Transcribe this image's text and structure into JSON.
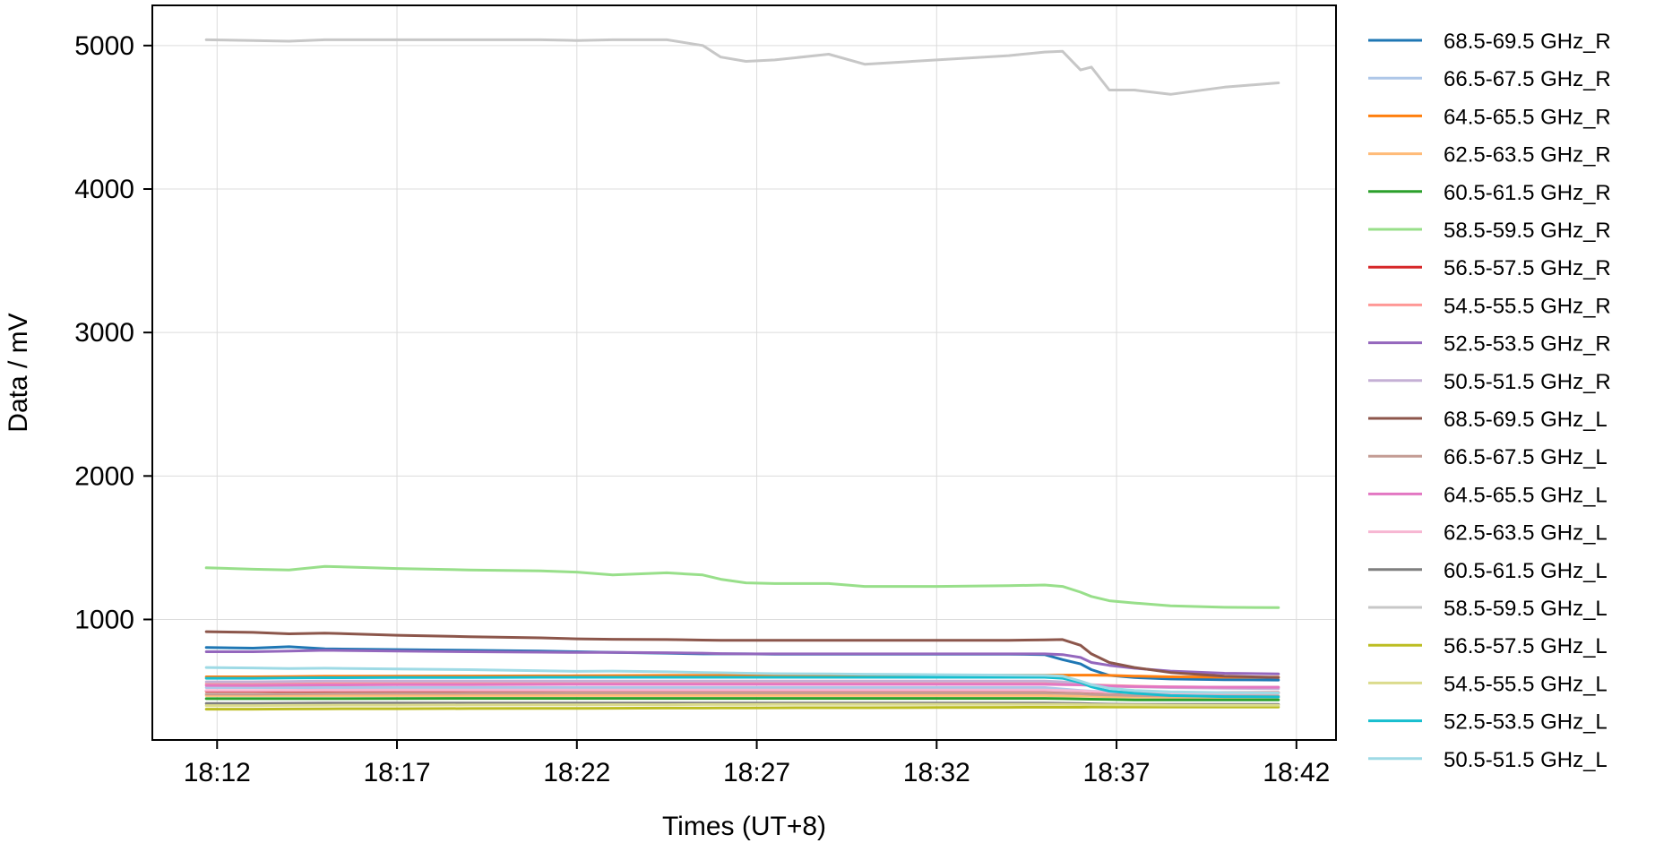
{
  "chart_data": {
    "type": "line",
    "title": "",
    "xlabel": "Times (UT+8)",
    "ylabel": "Data / mV",
    "x_tick_labels": [
      "18:12",
      "18:17",
      "18:22",
      "18:27",
      "18:32",
      "18:37",
      "18:42"
    ],
    "x_tick_minutes": [
      0,
      5,
      10,
      15,
      20,
      25,
      30
    ],
    "y_ticks": [
      1000,
      2000,
      3000,
      4000,
      5000
    ],
    "xlim_minutes": [
      -1.8,
      31.1
    ],
    "ylim": [
      160,
      5280
    ],
    "grid": true,
    "legend_location": "outside-right",
    "x": [
      -0.3,
      1.0,
      2.0,
      3.0,
      5.0,
      7.0,
      9.0,
      10.0,
      11.0,
      12.5,
      13.5,
      14.0,
      14.7,
      15.5,
      17.0,
      18.0,
      20.0,
      22.0,
      23.0,
      23.5,
      24.0,
      24.3,
      24.8,
      25.5,
      26.5,
      28.0,
      29.5
    ],
    "series": [
      {
        "name": "68.5-69.5 GHz_R",
        "color": "#1f77b4",
        "values": [
          805,
          800,
          810,
          795,
          790,
          785,
          780,
          775,
          770,
          765,
          760,
          760,
          760,
          758,
          758,
          758,
          758,
          758,
          755,
          720,
          690,
          650,
          610,
          595,
          585,
          580,
          578
        ]
      },
      {
        "name": "66.5-67.5 GHz_R",
        "color": "#aec7e8",
        "values": [
          525,
          525,
          525,
          525,
          525,
          525,
          525,
          525,
          525,
          525,
          525,
          525,
          525,
          525,
          525,
          525,
          525,
          525,
          525,
          515,
          505,
          500,
          495,
          490,
          485,
          485,
          485
        ]
      },
      {
        "name": "64.5-65.5 GHz_R",
        "color": "#ff7f0e",
        "values": [
          600,
          600,
          602,
          604,
          605,
          606,
          607,
          608,
          609,
          610,
          610,
          610,
          611,
          612,
          612,
          612,
          612,
          612,
          612,
          612,
          612,
          612,
          610,
          605,
          600,
          598,
          598
        ]
      },
      {
        "name": "62.5-63.5 GHz_R",
        "color": "#ffbb78",
        "values": [
          470,
          470,
          470,
          470,
          470,
          470,
          470,
          470,
          470,
          470,
          470,
          470,
          470,
          470,
          470,
          470,
          470,
          470,
          470,
          468,
          466,
          464,
          462,
          460,
          458,
          458,
          458
        ]
      },
      {
        "name": "60.5-61.5 GHz_R",
        "color": "#2ca02c",
        "values": [
          448,
          448,
          448,
          448,
          449,
          450,
          450,
          450,
          450,
          450,
          450,
          450,
          450,
          450,
          450,
          450,
          450,
          450,
          450,
          448,
          446,
          444,
          442,
          440,
          440,
          440,
          440
        ]
      },
      {
        "name": "58.5-59.5 GHz_R",
        "color": "#98df8a",
        "values": [
          1360,
          1350,
          1345,
          1370,
          1355,
          1345,
          1338,
          1330,
          1310,
          1325,
          1310,
          1280,
          1255,
          1250,
          1250,
          1230,
          1230,
          1235,
          1240,
          1230,
          1190,
          1160,
          1130,
          1115,
          1095,
          1085,
          1082
        ]
      },
      {
        "name": "56.5-57.5 GHz_R",
        "color": "#d62728",
        "values": [
          500,
          500,
          500,
          500,
          500,
          500,
          500,
          500,
          500,
          500,
          500,
          500,
          500,
          500,
          500,
          500,
          500,
          500,
          500,
          498,
          496,
          494,
          492,
          490,
          490,
          490,
          490
        ]
      },
      {
        "name": "54.5-55.5 GHz_R",
        "color": "#ff9896",
        "values": [
          550,
          550,
          552,
          554,
          555,
          556,
          557,
          558,
          558,
          558,
          558,
          558,
          558,
          558,
          558,
          558,
          558,
          558,
          558,
          555,
          550,
          545,
          540,
          535,
          530,
          528,
          528
        ]
      },
      {
        "name": "52.5-53.5 GHz_R",
        "color": "#9467bd",
        "values": [
          775,
          775,
          780,
          785,
          780,
          775,
          772,
          770,
          770,
          768,
          765,
          762,
          760,
          760,
          760,
          760,
          760,
          760,
          760,
          755,
          735,
          700,
          680,
          660,
          640,
          625,
          620
        ]
      },
      {
        "name": "50.5-51.5 GHz_R",
        "color": "#c5b0d5",
        "values": [
          565,
          565,
          567,
          570,
          570,
          570,
          570,
          570,
          570,
          570,
          570,
          570,
          570,
          570,
          570,
          570,
          570,
          570,
          570,
          565,
          555,
          545,
          535,
          530,
          525,
          520,
          518
        ]
      },
      {
        "name": "68.5-69.5 GHz_L",
        "color": "#8c564b",
        "values": [
          915,
          910,
          900,
          905,
          890,
          880,
          872,
          865,
          862,
          860,
          856,
          855,
          855,
          855,
          855,
          855,
          855,
          855,
          858,
          860,
          820,
          760,
          700,
          665,
          630,
          605,
          595
        ]
      },
      {
        "name": "66.5-67.5 GHz_L",
        "color": "#c49c94",
        "values": [
          480,
          480,
          482,
          484,
          485,
          486,
          487,
          488,
          488,
          488,
          488,
          488,
          488,
          488,
          488,
          488,
          488,
          488,
          488,
          485,
          482,
          478,
          474,
          470,
          468,
          466,
          466
        ]
      },
      {
        "name": "64.5-65.5 GHz_L",
        "color": "#e377c2",
        "values": [
          540,
          540,
          542,
          544,
          545,
          546,
          547,
          548,
          548,
          548,
          548,
          548,
          548,
          548,
          548,
          548,
          548,
          548,
          548,
          546,
          544,
          540,
          536,
          532,
          530,
          528,
          528
        ]
      },
      {
        "name": "62.5-63.5 GHz_L",
        "color": "#f7b6d2",
        "values": [
          505,
          505,
          506,
          507,
          508,
          508,
          508,
          508,
          508,
          508,
          508,
          508,
          508,
          508,
          508,
          508,
          508,
          508,
          508,
          505,
          502,
          498,
          494,
          490,
          488,
          486,
          486
        ]
      },
      {
        "name": "60.5-61.5 GHz_L",
        "color": "#7f7f7f",
        "values": [
          415,
          415,
          416,
          417,
          418,
          418,
          418,
          418,
          418,
          418,
          418,
          418,
          418,
          418,
          418,
          418,
          418,
          418,
          418,
          416,
          414,
          412,
          410,
          408,
          408,
          408,
          408
        ]
      },
      {
        "name": "58.5-59.5 GHz_L",
        "color": "#c7c7c7",
        "values": [
          5040,
          5035,
          5030,
          5040,
          5040,
          5040,
          5040,
          5035,
          5040,
          5040,
          5000,
          4920,
          4890,
          4900,
          4940,
          4870,
          4900,
          4930,
          4955,
          4960,
          4830,
          4850,
          4690,
          4690,
          4660,
          4710,
          4740
        ]
      },
      {
        "name": "56.5-57.5 GHz_L",
        "color": "#bcbd22",
        "values": [
          375,
          375,
          376,
          377,
          378,
          379,
          380,
          380,
          381,
          382,
          382,
          383,
          383,
          384,
          385,
          385,
          386,
          387,
          388,
          388,
          388,
          389,
          390,
          390,
          390,
          390,
          390
        ]
      },
      {
        "name": "54.5-55.5 GHz_L",
        "color": "#dbdb8d",
        "values": [
          400,
          400,
          401,
          402,
          403,
          404,
          405,
          405,
          406,
          406,
          407,
          407,
          407,
          408,
          408,
          408,
          408,
          408,
          408,
          408,
          407,
          406,
          405,
          404,
          403,
          402,
          402
        ]
      },
      {
        "name": "52.5-53.5 GHz_L",
        "color": "#17becf",
        "values": [
          590,
          590,
          592,
          594,
          595,
          596,
          597,
          597,
          597,
          597,
          597,
          597,
          597,
          597,
          597,
          597,
          597,
          597,
          597,
          590,
          560,
          530,
          500,
          485,
          470,
          462,
          460
        ]
      },
      {
        "name": "50.5-51.5 GHz_L",
        "color": "#9edae5",
        "values": [
          665,
          662,
          658,
          660,
          655,
          650,
          642,
          638,
          640,
          635,
          630,
          628,
          625,
          622,
          620,
          618,
          615,
          612,
          610,
          605,
          570,
          545,
          520,
          505,
          495,
          490,
          488
        ]
      }
    ]
  }
}
